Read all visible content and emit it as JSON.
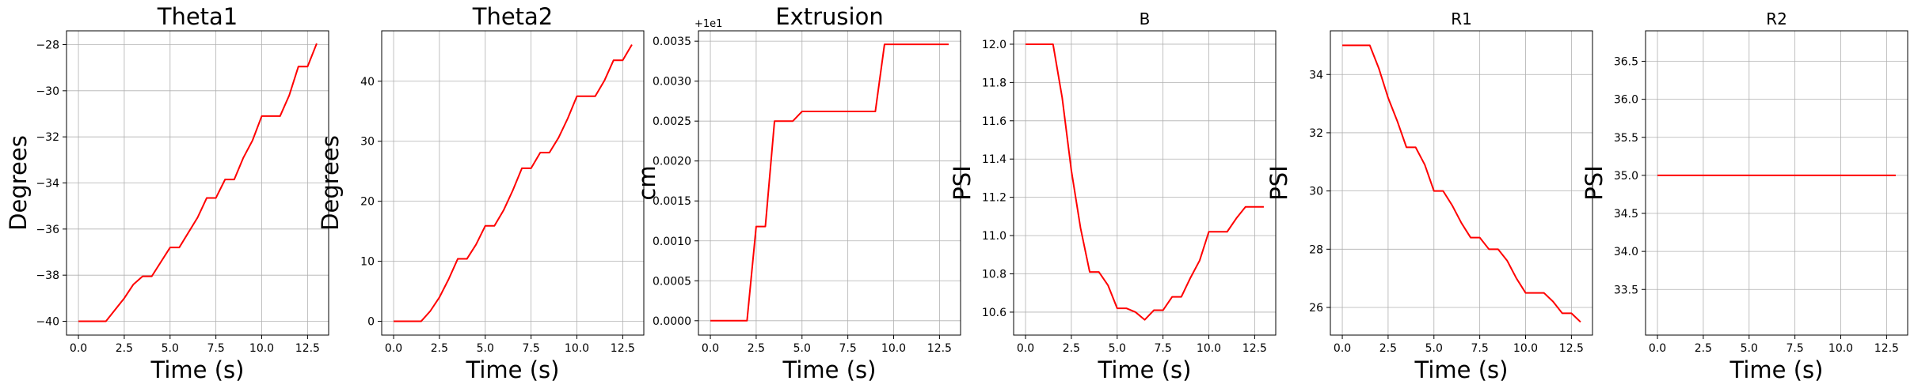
{
  "chart_data": [
    {
      "type": "line",
      "title": "Theta1",
      "xlabel": "Time (s)",
      "ylabel": "Degrees",
      "grid": true,
      "xlim": [
        -0.65,
        13.65
      ],
      "ylim": [
        -40.6,
        -27.4
      ],
      "xticks": [
        0,
        2.5,
        5,
        7.5,
        10,
        12.5
      ],
      "xtick_labels": [
        "0.0",
        "2.5",
        "5.0",
        "7.5",
        "10.0",
        "12.5"
      ],
      "yticks": [
        -40,
        -38,
        -36,
        -34,
        -32,
        -30,
        -28
      ],
      "ytick_labels": [
        "−40",
        "−38",
        "−36",
        "−34",
        "−32",
        "−30",
        "−28"
      ],
      "series": [
        {
          "color": "#ff0000",
          "x": [
            0,
            1.5,
            2.5,
            3,
            3.5,
            4,
            5,
            5.5,
            6.5,
            7,
            7.5,
            8,
            8.5,
            9,
            9.5,
            10,
            11,
            11.5,
            12,
            12.5,
            13
          ],
          "y": [
            -40,
            -40,
            -39,
            -38.4,
            -38.05,
            -38.05,
            -36.8,
            -36.8,
            -35.5,
            -34.65,
            -34.65,
            -33.85,
            -33.85,
            -32.9,
            -32.15,
            -31.1,
            -31.1,
            -30.2,
            -28.95,
            -28.95,
            -27.95
          ]
        }
      ]
    },
    {
      "type": "line",
      "title": "Theta2",
      "xlabel": "Time (s)",
      "ylabel": "Degrees",
      "grid": true,
      "xlim": [
        -0.65,
        13.65
      ],
      "ylim": [
        -2.3,
        48.4
      ],
      "xticks": [
        0,
        2.5,
        5,
        7.5,
        10,
        12.5
      ],
      "xtick_labels": [
        "0.0",
        "2.5",
        "5.0",
        "7.5",
        "10.0",
        "12.5"
      ],
      "yticks": [
        0,
        10,
        20,
        30,
        40
      ],
      "ytick_labels": [
        "0",
        "10",
        "20",
        "30",
        "40"
      ],
      "series": [
        {
          "color": "#ff0000",
          "x": [
            0,
            1.5,
            2,
            2.5,
            3,
            3.5,
            4,
            4.5,
            5,
            5.5,
            6,
            6.5,
            7,
            7.5,
            8,
            8.5,
            9,
            9.5,
            10,
            11,
            11.5,
            12,
            12.5,
            13
          ],
          "y": [
            0,
            0,
            1.7,
            4,
            7,
            10.4,
            10.4,
            12.8,
            15.9,
            15.9,
            18.5,
            21.8,
            25.5,
            25.5,
            28.1,
            28.1,
            30.6,
            33.8,
            37.5,
            37.5,
            40.1,
            43.5,
            43.5,
            46.1
          ]
        }
      ]
    },
    {
      "type": "line",
      "title": "Extrusion",
      "xlabel": "Time (s)",
      "ylabel": "cm",
      "offset_label": "+1e1",
      "grid": true,
      "xlim": [
        -0.65,
        13.65
      ],
      "ylim": [
        -0.00018,
        0.00363
      ],
      "xticks": [
        0,
        2.5,
        5,
        7.5,
        10,
        12.5
      ],
      "xtick_labels": [
        "0.0",
        "2.5",
        "5.0",
        "7.5",
        "10.0",
        "12.5"
      ],
      "yticks": [
        0,
        0.0005,
        0.001,
        0.0015,
        0.002,
        0.0025,
        0.003,
        0.0035
      ],
      "ytick_labels": [
        "0.0000",
        "0.0005",
        "0.0010",
        "0.0015",
        "0.0020",
        "0.0025",
        "0.0030",
        "0.0035"
      ],
      "series": [
        {
          "color": "#ff0000",
          "x": [
            0,
            2,
            2.5,
            3,
            3.5,
            4.5,
            5,
            9,
            9.5,
            13
          ],
          "y": [
            0,
            0,
            0.00118,
            0.00118,
            0.0025,
            0.0025,
            0.00262,
            0.00262,
            0.00346,
            0.00346
          ]
        }
      ]
    },
    {
      "type": "line",
      "title": "B",
      "xlabel": "Time (s)",
      "ylabel": "PSI",
      "grid": true,
      "xlim": [
        -0.65,
        13.65
      ],
      "ylim": [
        10.48,
        12.07
      ],
      "xticks": [
        0,
        2.5,
        5,
        7.5,
        10,
        12.5
      ],
      "xtick_labels": [
        "0.0",
        "2.5",
        "5.0",
        "7.5",
        "10.0",
        "12.5"
      ],
      "yticks": [
        10.6,
        10.8,
        11.0,
        11.2,
        11.4,
        11.6,
        11.8,
        12.0
      ],
      "ytick_labels": [
        "10.6",
        "10.8",
        "11.0",
        "11.2",
        "11.4",
        "11.6",
        "11.8",
        "12.0"
      ],
      "series": [
        {
          "color": "#ff0000",
          "x": [
            0,
            1.5,
            2,
            2.5,
            3,
            3.5,
            4,
            4.5,
            5,
            5.5,
            6,
            6.5,
            7,
            7.5,
            8,
            8.5,
            9,
            9.5,
            10,
            11,
            11.5,
            12,
            12.5,
            13
          ],
          "y": [
            12,
            12,
            11.72,
            11.34,
            11.04,
            10.81,
            10.81,
            10.74,
            10.62,
            10.62,
            10.6,
            10.56,
            10.61,
            10.61,
            10.68,
            10.68,
            10.78,
            10.87,
            11.02,
            11.02,
            11.09,
            11.15,
            11.15,
            11.15
          ]
        }
      ]
    },
    {
      "type": "line",
      "title": "R1",
      "xlabel": "Time (s)",
      "ylabel": "PSI",
      "grid": true,
      "xlim": [
        -0.65,
        13.65
      ],
      "ylim": [
        25.05,
        35.5
      ],
      "xticks": [
        0,
        2.5,
        5,
        7.5,
        10,
        12.5
      ],
      "xtick_labels": [
        "0.0",
        "2.5",
        "5.0",
        "7.5",
        "10.0",
        "12.5"
      ],
      "yticks": [
        26,
        28,
        30,
        32,
        34
      ],
      "ytick_labels": [
        "26",
        "28",
        "30",
        "32",
        "34"
      ],
      "series": [
        {
          "color": "#ff0000",
          "x": [
            0,
            1.5,
            2,
            2.5,
            3,
            3.5,
            4,
            4.5,
            5,
            5.5,
            6,
            6.5,
            7,
            7.5,
            8,
            8.5,
            9,
            9.5,
            10,
            11,
            11.5,
            12,
            12.5,
            13
          ],
          "y": [
            35,
            35,
            34.2,
            33.2,
            32.4,
            31.5,
            31.5,
            30.9,
            30,
            30,
            29.5,
            28.9,
            28.4,
            28.4,
            28,
            28,
            27.6,
            27,
            26.5,
            26.5,
            26.2,
            25.8,
            25.8,
            25.5
          ]
        }
      ]
    },
    {
      "type": "line",
      "title": "R2",
      "xlabel": "Time (s)",
      "ylabel": "PSI",
      "grid": true,
      "xlim": [
        -0.65,
        13.65
      ],
      "ylim": [
        32.9,
        36.9
      ],
      "xticks": [
        0,
        2.5,
        5,
        7.5,
        10,
        12.5
      ],
      "xtick_labels": [
        "0.0",
        "2.5",
        "5.0",
        "7.5",
        "10.0",
        "12.5"
      ],
      "yticks": [
        33.5,
        34.0,
        34.5,
        35.0,
        35.5,
        36.0,
        36.5
      ],
      "ytick_labels": [
        "33.5",
        "34.0",
        "34.5",
        "35.0",
        "35.5",
        "36.0",
        "36.5"
      ],
      "series": [
        {
          "color": "#ff0000",
          "x": [
            0,
            13
          ],
          "y": [
            35,
            35
          ]
        }
      ]
    }
  ]
}
